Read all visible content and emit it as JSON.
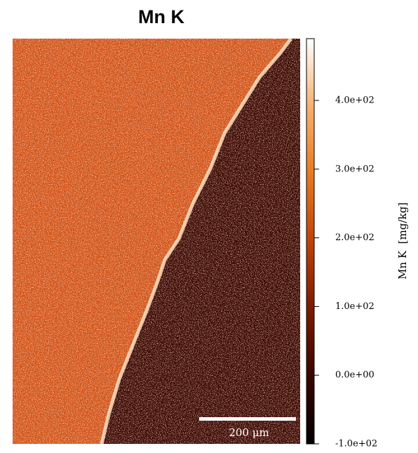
{
  "chart_data": {
    "type": "heatmap",
    "title": "Mn K",
    "colorbar_label": "Mn K  [mg/kg]",
    "clim": [
      -100,
      490
    ],
    "cticks": [
      {
        "value": -100,
        "label": "-1.0e+02"
      },
      {
        "value": 0,
        "label": "0.0e+00"
      },
      {
        "value": 100,
        "label": "1.0e+02"
      },
      {
        "value": 200,
        "label": "2.0e+02"
      },
      {
        "value": 300,
        "label": "3.0e+02"
      },
      {
        "value": 400,
        "label": "4.0e+02"
      }
    ],
    "colormap": [
      "#000000",
      "#3a0500",
      "#7a1a00",
      "#c0420a",
      "#e87a20",
      "#f8b070",
      "#ffffff"
    ],
    "scale_bar_label": "200 μm"
  }
}
